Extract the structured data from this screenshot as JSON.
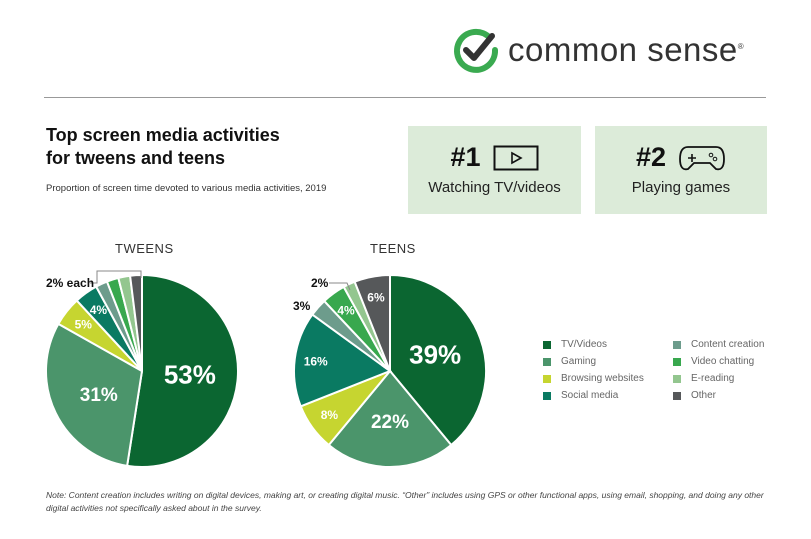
{
  "logo": {
    "text": "common sense",
    "mark": "®"
  },
  "title_line1": "Top screen media activities",
  "title_line2": "for tweens and teens",
  "subtitle": "Proportion of screen time devoted to various media activities, 2019",
  "cards": [
    {
      "rank": "#1",
      "label": "Watching TV/videos",
      "icon": "play-icon"
    },
    {
      "rank": "#2",
      "label": "Playing games",
      "icon": "gamepad-icon"
    }
  ],
  "colors": {
    "accent": "#3aaa50",
    "card_bg": "#dcebd9"
  },
  "chart_data": [
    {
      "type": "pie",
      "title": "TWEENS",
      "categories": [
        "TV/Videos",
        "Gaming",
        "Browsing websites",
        "Social media",
        "Content creation",
        "Video chatting",
        "E-reading",
        "Other"
      ],
      "values": [
        53,
        31,
        5,
        4,
        2,
        2,
        2,
        2
      ],
      "labels": [
        "53%",
        "31%",
        "5%",
        "4%",
        "",
        "",
        "",
        ""
      ],
      "callout": "2% each"
    },
    {
      "type": "pie",
      "title": "TEENS",
      "categories": [
        "TV/Videos",
        "Gaming",
        "Browsing websites",
        "Social media",
        "Content creation",
        "Video chatting",
        "E-reading",
        "Other"
      ],
      "values": [
        39,
        22,
        8,
        16,
        3,
        4,
        2,
        6
      ],
      "labels": [
        "39%",
        "22%",
        "8%",
        "16%",
        "",
        "4%",
        "",
        "6%"
      ],
      "callouts": [
        "3%",
        "2%"
      ]
    }
  ],
  "legend": {
    "placement": "right",
    "items": [
      {
        "name": "TV/Videos",
        "color": "#0b6631"
      },
      {
        "name": "Content creation",
        "color": "#6d9c8c"
      },
      {
        "name": "Gaming",
        "color": "#4b956b"
      },
      {
        "name": "Video chatting",
        "color": "#38a84e"
      },
      {
        "name": "Browsing websites",
        "color": "#c6d530"
      },
      {
        "name": "E-reading",
        "color": "#93c68f"
      },
      {
        "name": "Social media",
        "color": "#0a7a62"
      },
      {
        "name": "Other",
        "color": "#56585a"
      }
    ]
  },
  "slice_colors": [
    "#0b6631",
    "#4b956b",
    "#c6d530",
    "#0a7a62",
    "#6d9c8c",
    "#38a84e",
    "#93c68f",
    "#56585a"
  ],
  "note": "Note: Content creation includes writing on digital devices, making art, or creating digital music. “Other” includes using GPS or other functional apps, using email, shopping, and doing any other digital activities not specifically asked about in the survey."
}
